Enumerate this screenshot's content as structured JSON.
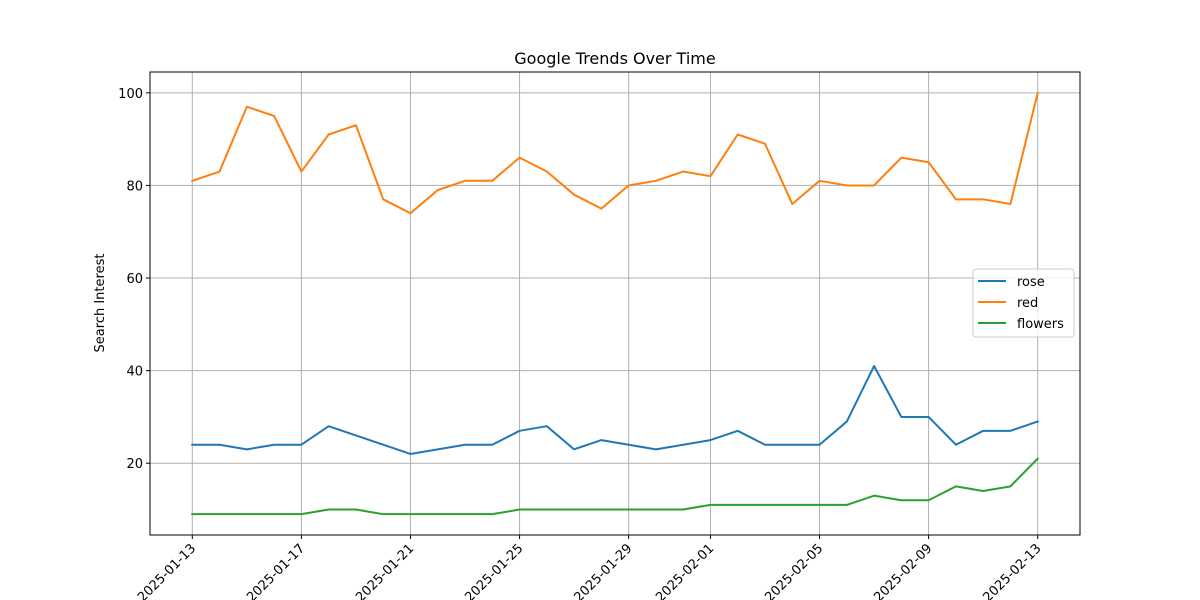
{
  "chart_data": {
    "type": "line",
    "title": "Google Trends Over Time",
    "xlabel": "",
    "ylabel": "Search Interest",
    "x": [
      "2025-01-13",
      "2025-01-14",
      "2025-01-15",
      "2025-01-16",
      "2025-01-17",
      "2025-01-18",
      "2025-01-19",
      "2025-01-20",
      "2025-01-21",
      "2025-01-22",
      "2025-01-23",
      "2025-01-24",
      "2025-01-25",
      "2025-01-26",
      "2025-01-27",
      "2025-01-28",
      "2025-01-29",
      "2025-01-30",
      "2025-01-31",
      "2025-02-01",
      "2025-02-02",
      "2025-02-03",
      "2025-02-04",
      "2025-02-05",
      "2025-02-06",
      "2025-02-07",
      "2025-02-08",
      "2025-02-09",
      "2025-02-10",
      "2025-02-11",
      "2025-02-12",
      "2025-02-13"
    ],
    "x_ticks": [
      "2025-01-13",
      "2025-01-17",
      "2025-01-21",
      "2025-01-25",
      "2025-01-29",
      "2025-02-01",
      "2025-02-05",
      "2025-02-09",
      "2025-02-13"
    ],
    "y_ticks": [
      20,
      40,
      60,
      80,
      100
    ],
    "ylim": [
      4.5,
      104.5
    ],
    "grid": true,
    "legend_position": "center-right",
    "series": [
      {
        "name": "rose",
        "color": "#1f77b4",
        "values": [
          24,
          24,
          23,
          24,
          24,
          28,
          26,
          24,
          22,
          23,
          24,
          24,
          27,
          28,
          23,
          25,
          24,
          23,
          24,
          25,
          27,
          24,
          24,
          24,
          29,
          41,
          30,
          30,
          24,
          27,
          27,
          29
        ]
      },
      {
        "name": "red",
        "color": "#ff7f0e",
        "values": [
          81,
          83,
          97,
          95,
          83,
          91,
          93,
          77,
          74,
          79,
          81,
          81,
          86,
          83,
          78,
          75,
          80,
          81,
          83,
          82,
          91,
          89,
          76,
          81,
          80,
          80,
          86,
          85,
          77,
          77,
          76,
          100
        ]
      },
      {
        "name": "flowers",
        "color": "#2ca02c",
        "values": [
          9,
          9,
          9,
          9,
          9,
          10,
          10,
          9,
          9,
          9,
          9,
          9,
          10,
          10,
          10,
          10,
          10,
          10,
          10,
          11,
          11,
          11,
          11,
          11,
          11,
          13,
          12,
          12,
          15,
          14,
          15,
          21
        ]
      }
    ]
  }
}
